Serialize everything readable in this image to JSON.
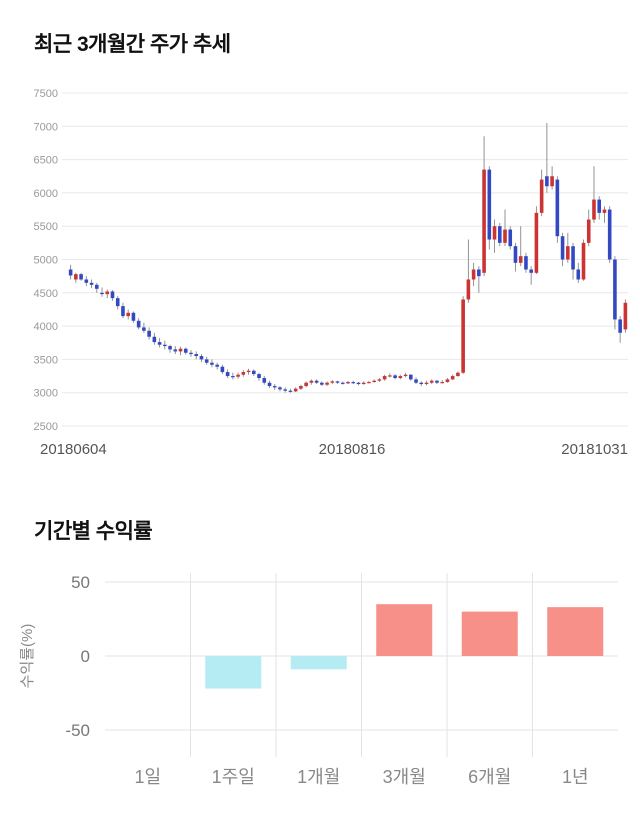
{
  "page": {
    "title_price_trend": "최근 3개월간 주가 추세",
    "title_returns": "기간별 수익률"
  },
  "chart_data": [
    {
      "type": "candlestick",
      "title": "최근 3개월간 주가 추세",
      "ylim": [
        2500,
        7500
      ],
      "y_ticks": [
        7500,
        7000,
        6500,
        6000,
        5500,
        5000,
        4500,
        4000,
        3500,
        3000,
        2500
      ],
      "x_tick_labels": [
        "20180604",
        "20180816",
        "20181031"
      ],
      "grid": true,
      "colors": {
        "up": "#cc3333",
        "down": "#3349c4",
        "wick": "#888888",
        "grid": "#e8e8e8",
        "tick_text": "#999999",
        "axis_text": "#555555"
      },
      "ohlc": [
        [
          4850,
          4920,
          4700,
          4760
        ],
        [
          4700,
          4800,
          4650,
          4780
        ],
        [
          4780,
          4800,
          4680,
          4700
        ],
        [
          4700,
          4750,
          4600,
          4650
        ],
        [
          4650,
          4700,
          4570,
          4620
        ],
        [
          4620,
          4650,
          4500,
          4560
        ],
        [
          4500,
          4580,
          4440,
          4480
        ],
        [
          4480,
          4550,
          4420,
          4520
        ],
        [
          4520,
          4540,
          4380,
          4420
        ],
        [
          4420,
          4450,
          4250,
          4300
        ],
        [
          4300,
          4350,
          4120,
          4150
        ],
        [
          4150,
          4250,
          4100,
          4200
        ],
        [
          4200,
          4220,
          4050,
          4080
        ],
        [
          4080,
          4120,
          3950,
          3980
        ],
        [
          3980,
          4050,
          3900,
          3930
        ],
        [
          3930,
          3980,
          3800,
          3840
        ],
        [
          3840,
          3900,
          3720,
          3760
        ],
        [
          3760,
          3820,
          3680,
          3720
        ],
        [
          3720,
          3780,
          3650,
          3700
        ],
        [
          3700,
          3720,
          3600,
          3650
        ],
        [
          3650,
          3700,
          3580,
          3620
        ],
        [
          3620,
          3690,
          3560,
          3660
        ],
        [
          3660,
          3680,
          3570,
          3600
        ],
        [
          3600,
          3640,
          3540,
          3580
        ],
        [
          3580,
          3620,
          3500,
          3550
        ],
        [
          3550,
          3580,
          3460,
          3500
        ],
        [
          3500,
          3540,
          3420,
          3450
        ],
        [
          3450,
          3500,
          3380,
          3420
        ],
        [
          3420,
          3450,
          3350,
          3390
        ],
        [
          3390,
          3420,
          3280,
          3310
        ],
        [
          3310,
          3350,
          3220,
          3250
        ],
        [
          3250,
          3300,
          3200,
          3240
        ],
        [
          3240,
          3300,
          3210,
          3270
        ],
        [
          3270,
          3340,
          3240,
          3310
        ],
        [
          3310,
          3360,
          3270,
          3330
        ],
        [
          3330,
          3350,
          3250,
          3280
        ],
        [
          3280,
          3300,
          3180,
          3220
        ],
        [
          3220,
          3250,
          3120,
          3150
        ],
        [
          3150,
          3180,
          3070,
          3100
        ],
        [
          3100,
          3130,
          3040,
          3080
        ],
        [
          3080,
          3100,
          3020,
          3050
        ],
        [
          3050,
          3080,
          3000,
          3030
        ],
        [
          3030,
          3060,
          3000,
          3020
        ],
        [
          3020,
          3080,
          3010,
          3060
        ],
        [
          3060,
          3120,
          3040,
          3100
        ],
        [
          3100,
          3170,
          3080,
          3150
        ],
        [
          3150,
          3200,
          3120,
          3180
        ],
        [
          3180,
          3200,
          3130,
          3150
        ],
        [
          3150,
          3170,
          3100,
          3120
        ],
        [
          3120,
          3170,
          3100,
          3150
        ],
        [
          3150,
          3190,
          3130,
          3170
        ],
        [
          3170,
          3180,
          3130,
          3150
        ],
        [
          3150,
          3170,
          3120,
          3140
        ],
        [
          3140,
          3180,
          3130,
          3160
        ],
        [
          3160,
          3180,
          3130,
          3150
        ],
        [
          3150,
          3160,
          3110,
          3130
        ],
        [
          3130,
          3170,
          3120,
          3150
        ],
        [
          3150,
          3180,
          3140,
          3160
        ],
        [
          3160,
          3200,
          3150,
          3180
        ],
        [
          3180,
          3220,
          3160,
          3200
        ],
        [
          3200,
          3270,
          3180,
          3250
        ],
        [
          3250,
          3290,
          3230,
          3260
        ],
        [
          3260,
          3280,
          3200,
          3220
        ],
        [
          3220,
          3270,
          3200,
          3250
        ],
        [
          3250,
          3300,
          3230,
          3270
        ],
        [
          3270,
          3280,
          3180,
          3200
        ],
        [
          3200,
          3230,
          3130,
          3150
        ],
        [
          3150,
          3170,
          3100,
          3130
        ],
        [
          3130,
          3180,
          3110,
          3150
        ],
        [
          3150,
          3200,
          3130,
          3180
        ],
        [
          3180,
          3190,
          3130,
          3150
        ],
        [
          3150,
          3190,
          3140,
          3160
        ],
        [
          3160,
          3220,
          3150,
          3200
        ],
        [
          3200,
          3270,
          3190,
          3250
        ],
        [
          3250,
          3320,
          3240,
          3300
        ],
        [
          3300,
          4450,
          3280,
          4400
        ],
        [
          4400,
          5300,
          4350,
          4700
        ],
        [
          4700,
          4950,
          4600,
          4850
        ],
        [
          4850,
          4900,
          4500,
          4750
        ],
        [
          4800,
          6850,
          4750,
          6350
        ],
        [
          6350,
          6400,
          5150,
          5300
        ],
        [
          5300,
          5600,
          5100,
          5500
        ],
        [
          5500,
          5550,
          5200,
          5250
        ],
        [
          5250,
          5750,
          5200,
          5450
        ],
        [
          5450,
          5500,
          5150,
          5200
        ],
        [
          5200,
          5250,
          4820,
          4950
        ],
        [
          4950,
          5500,
          4900,
          5050
        ],
        [
          5050,
          5100,
          4800,
          4850
        ],
        [
          4850,
          4900,
          4620,
          4800
        ],
        [
          4800,
          5800,
          4780,
          5700
        ],
        [
          5700,
          6350,
          5650,
          6200
        ],
        [
          6250,
          7050,
          6000,
          6100
        ],
        [
          6100,
          6400,
          6050,
          6250
        ],
        [
          6200,
          6250,
          5250,
          5350
        ],
        [
          5350,
          5400,
          4900,
          5000
        ],
        [
          5000,
          5400,
          4950,
          5200
        ],
        [
          5200,
          5250,
          4700,
          4850
        ],
        [
          4850,
          4950,
          4650,
          4700
        ],
        [
          4700,
          5300,
          4680,
          5250
        ],
        [
          5250,
          5750,
          5200,
          5600
        ],
        [
          5600,
          6400,
          5550,
          5900
        ],
        [
          5900,
          5950,
          5600,
          5700
        ],
        [
          5700,
          5800,
          5550,
          5750
        ],
        [
          5750,
          5800,
          4950,
          5000
        ],
        [
          5000,
          5050,
          3950,
          4100
        ],
        [
          4100,
          4150,
          3750,
          3900
        ],
        [
          3950,
          4400,
          3900,
          4350
        ]
      ]
    },
    {
      "type": "bar",
      "title": "기간별 수익률",
      "categories": [
        "1일",
        "1주일",
        "1개월",
        "3개월",
        "6개월",
        "1년"
      ],
      "values": [
        0,
        -22,
        -9,
        35,
        30,
        33
      ],
      "ylabel": "수익률(%)",
      "y_ticks": [
        50,
        0,
        -50
      ],
      "ylim": [
        -62,
        62
      ],
      "grid": true,
      "legend": "none",
      "colors": {
        "positive": "#f79089",
        "negative": "#b5ecf4",
        "grid": "#e3e3e3",
        "tick_text": "#777777",
        "category_text": "#888888",
        "axis_label_text": "#888888"
      }
    }
  ]
}
